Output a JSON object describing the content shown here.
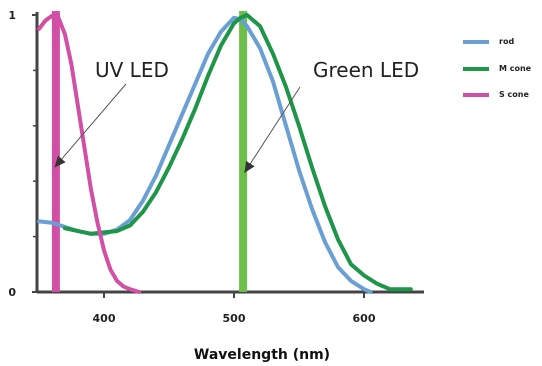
{
  "chart_data": {
    "type": "line",
    "xlabel": "Wavelength (nm)",
    "ylabel": "",
    "xlim": [
      350,
      640
    ],
    "ylim": [
      0,
      1
    ],
    "x_ticks": [
      400,
      500,
      600
    ],
    "y_ticks": [
      0,
      1
    ],
    "y_minor_ticks": [
      0.2,
      0.4,
      0.6,
      0.8
    ],
    "grid": false,
    "legend_position": "top-right",
    "series": [
      {
        "name": "rod",
        "color": "#6a9fd4",
        "points": [
          [
            350,
            0.255
          ],
          [
            360,
            0.25
          ],
          [
            370,
            0.235
          ],
          [
            380,
            0.22
          ],
          [
            390,
            0.21
          ],
          [
            400,
            0.21
          ],
          [
            410,
            0.225
          ],
          [
            420,
            0.26
          ],
          [
            430,
            0.33
          ],
          [
            440,
            0.42
          ],
          [
            450,
            0.53
          ],
          [
            460,
            0.64
          ],
          [
            470,
            0.75
          ],
          [
            480,
            0.86
          ],
          [
            490,
            0.94
          ],
          [
            500,
            0.99
          ],
          [
            505,
            0.985
          ],
          [
            510,
            0.96
          ],
          [
            520,
            0.88
          ],
          [
            530,
            0.76
          ],
          [
            540,
            0.6
          ],
          [
            550,
            0.44
          ],
          [
            560,
            0.3
          ],
          [
            570,
            0.18
          ],
          [
            580,
            0.09
          ],
          [
            590,
            0.04
          ],
          [
            600,
            0.01
          ],
          [
            605,
            0.0
          ]
        ]
      },
      {
        "name": "M cone",
        "color": "#1e9548",
        "points": [
          [
            370,
            0.23
          ],
          [
            380,
            0.22
          ],
          [
            390,
            0.21
          ],
          [
            400,
            0.215
          ],
          [
            410,
            0.22
          ],
          [
            420,
            0.24
          ],
          [
            430,
            0.29
          ],
          [
            440,
            0.36
          ],
          [
            450,
            0.45
          ],
          [
            460,
            0.55
          ],
          [
            470,
            0.66
          ],
          [
            480,
            0.78
          ],
          [
            490,
            0.89
          ],
          [
            500,
            0.97
          ],
          [
            505,
            0.99
          ],
          [
            510,
            1.0
          ],
          [
            520,
            0.96
          ],
          [
            530,
            0.86
          ],
          [
            540,
            0.74
          ],
          [
            550,
            0.6
          ],
          [
            560,
            0.45
          ],
          [
            570,
            0.31
          ],
          [
            580,
            0.19
          ],
          [
            590,
            0.1
          ],
          [
            600,
            0.06
          ],
          [
            610,
            0.03
          ],
          [
            620,
            0.01
          ],
          [
            630,
            0.01
          ],
          [
            636,
            0.01
          ]
        ]
      },
      {
        "name": "S cone",
        "color": "#d14fa4",
        "points": [
          [
            350,
            0.95
          ],
          [
            355,
            0.98
          ],
          [
            360,
            0.997
          ],
          [
            365,
            0.99
          ],
          [
            370,
            0.93
          ],
          [
            375,
            0.82
          ],
          [
            380,
            0.67
          ],
          [
            385,
            0.52
          ],
          [
            390,
            0.37
          ],
          [
            395,
            0.25
          ],
          [
            400,
            0.15
          ],
          [
            405,
            0.08
          ],
          [
            410,
            0.04
          ],
          [
            415,
            0.02
          ],
          [
            420,
            0.01
          ],
          [
            427,
            0.0
          ]
        ]
      }
    ],
    "vertical_bars": [
      {
        "x": 363,
        "color": "#d14fa4"
      },
      {
        "x": 507,
        "color": "#6cbf4a"
      }
    ],
    "annotations": [
      {
        "text": "UV LED",
        "arrow_to": [
          362,
          0.45
        ]
      },
      {
        "text": "Green LED",
        "arrow_to": [
          508,
          0.43
        ]
      }
    ]
  }
}
